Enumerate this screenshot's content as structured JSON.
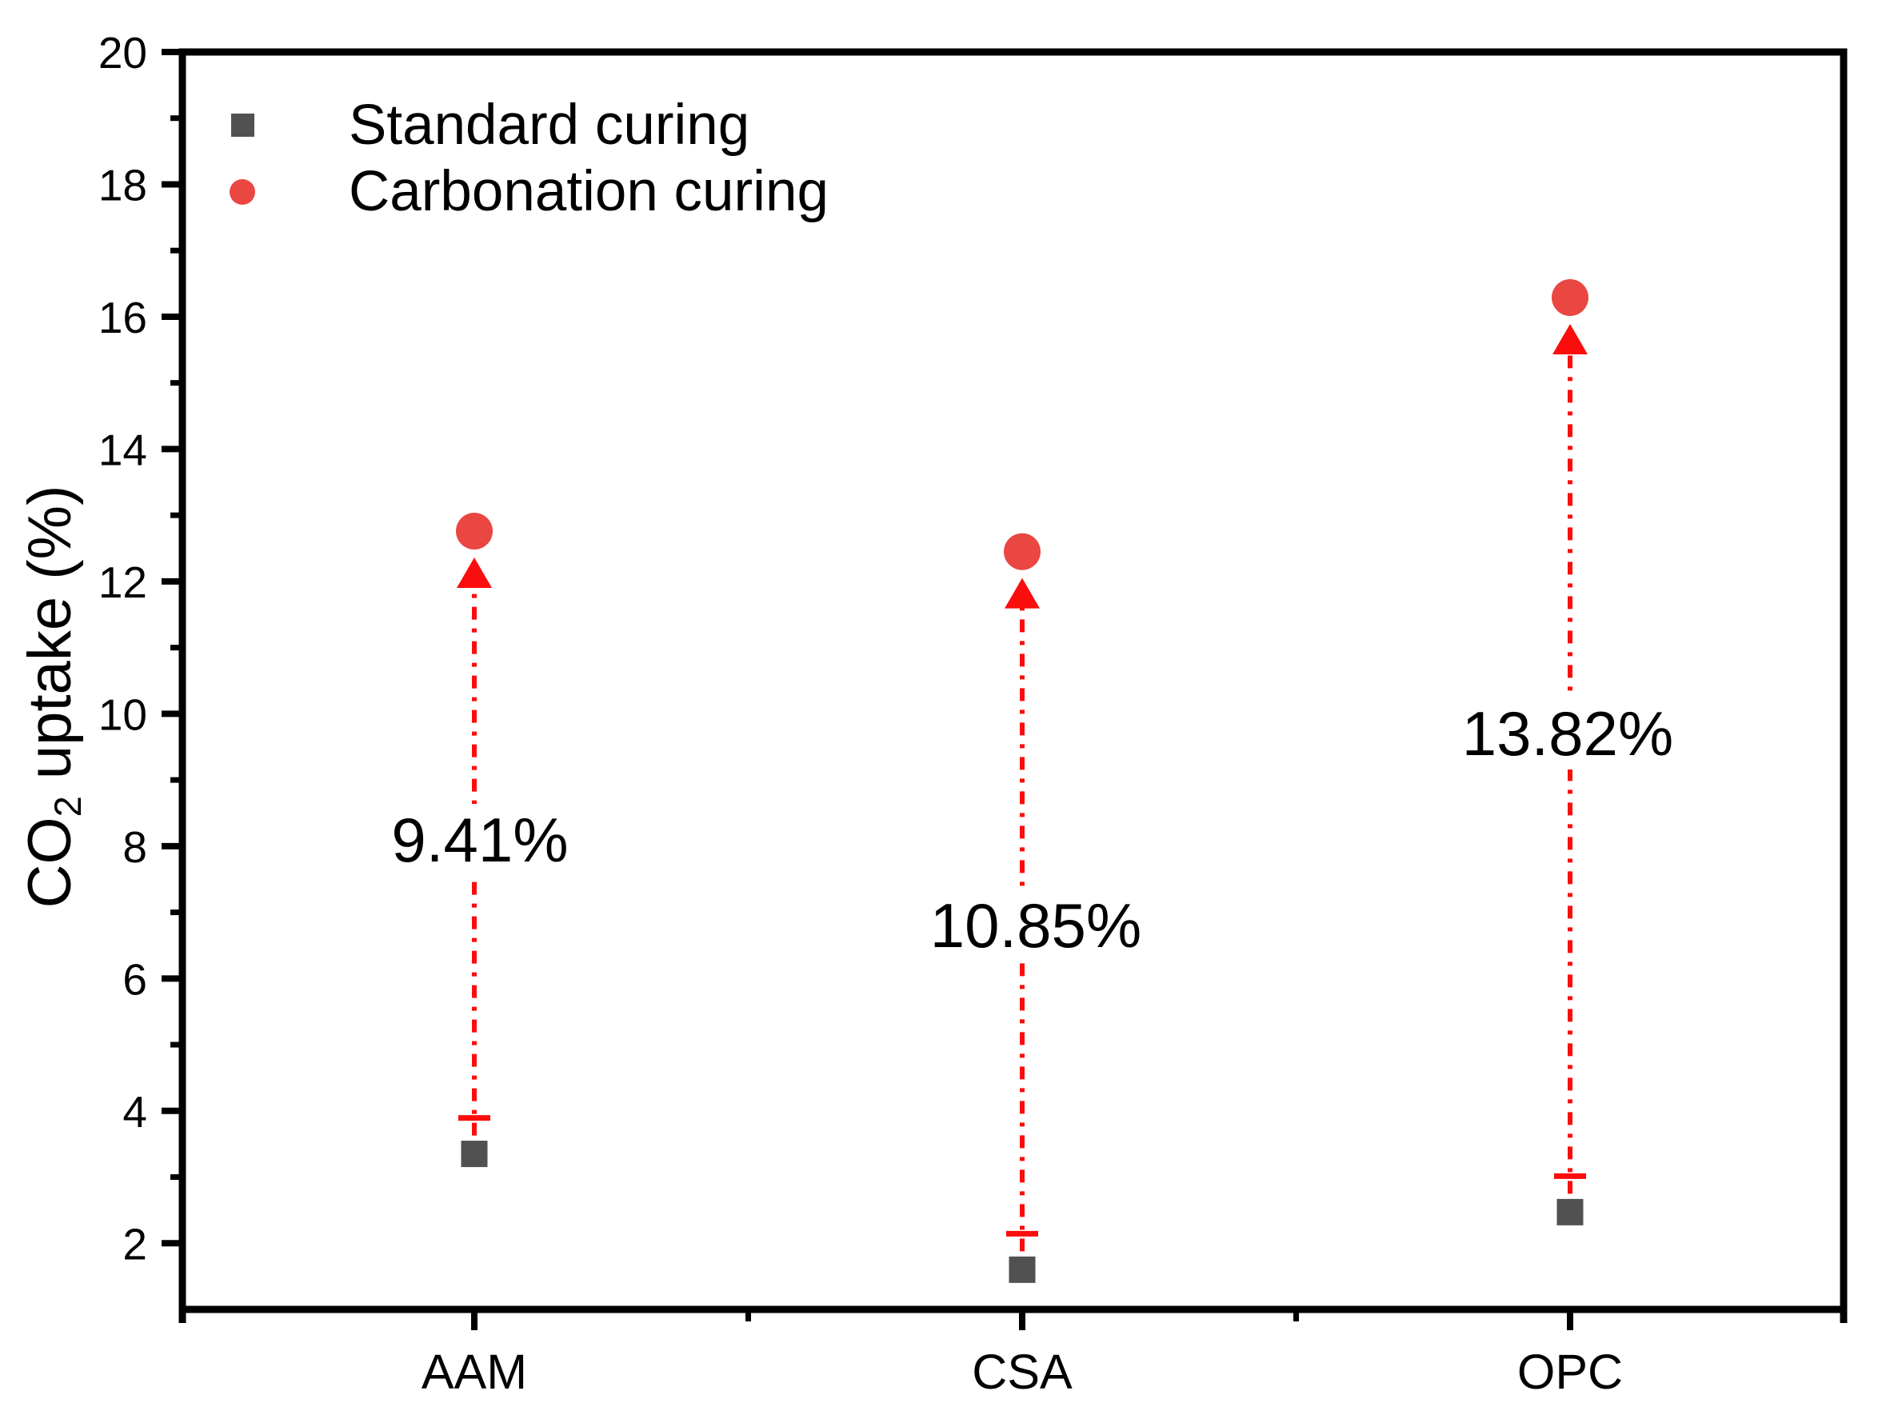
{
  "chart_data": {
    "type": "scatter",
    "title": "",
    "categories": [
      "AAM",
      "CSA",
      "OPC"
    ],
    "series": [
      {
        "name": "Standard curing",
        "marker": "square",
        "color": "#515151",
        "values": [
          3.35,
          1.6,
          2.47
        ]
      },
      {
        "name": "Carbonation curing",
        "marker": "circle",
        "color": "#ea4642",
        "values": [
          12.76,
          12.45,
          16.29
        ]
      }
    ],
    "annotations": [
      {
        "category": "AAM",
        "text": "9.41%",
        "y": 8.1
      },
      {
        "category": "CSA",
        "text": "10.85%",
        "y": 6.8
      },
      {
        "category": "OPC",
        "text": "13.82%",
        "y": 9.7
      }
    ],
    "arrows": {
      "color": "#fb0d0d",
      "style": "dash-dot",
      "direction": "up",
      "from_series": "Standard curing",
      "to_series": "Carbonation curing"
    },
    "ylabel": {
      "prefix": "CO",
      "sub": "2",
      "suffix": " uptake (%)"
    },
    "xlabel": "",
    "ylim": [
      1,
      20
    ],
    "y_major_ticks": [
      2,
      4,
      6,
      8,
      10,
      12,
      14,
      16,
      18,
      20
    ],
    "y_minor_ticks": [
      3,
      5,
      7,
      9,
      11,
      13,
      15,
      17,
      19
    ],
    "legend": {
      "position": "top-left"
    },
    "grid": "off",
    "axis_color": "#000000"
  }
}
